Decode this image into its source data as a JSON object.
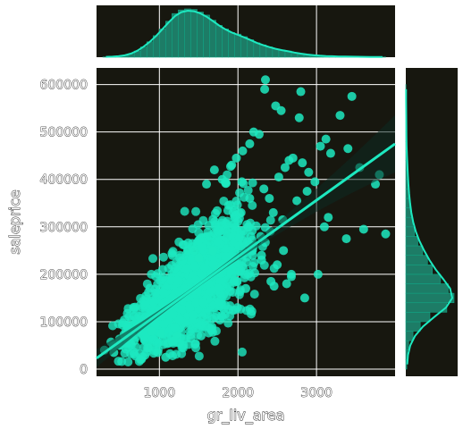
{
  "colors": {
    "background": "#17170f",
    "grid": "#ffffff",
    "accent": "#1de9c0",
    "bar": "#1d7c66",
    "bar_edge": "#12a484"
  },
  "chart_data": {
    "type": "scatter",
    "title": "",
    "xlabel": "gr_liv_area",
    "ylabel": "saleprice",
    "xlim": [
      200,
      4000
    ],
    "ylim": [
      -15000,
      635000
    ],
    "xticks": [
      1000,
      2000,
      3000
    ],
    "yticks": [
      0,
      100000,
      200000,
      300000,
      400000,
      500000,
      600000
    ],
    "xtick_labels": [
      "1000",
      "2000",
      "3000"
    ],
    "ytick_labels": [
      "0",
      "100000",
      "200000",
      "300000",
      "400000",
      "500000",
      "600000"
    ],
    "grid": true,
    "regression": {
      "x": [
        200,
        4000
      ],
      "y": [
        23000,
        475000
      ],
      "ci": true
    },
    "outliers": {
      "x": [
        2350,
        2340,
        2800,
        2480,
        2550,
        3450,
        3300,
        2780,
        3120,
        3400,
        2200,
        2270,
        2650,
        3050,
        2820,
        2900,
        2060,
        3550,
        3800,
        3180,
        3150,
        3750,
        3600,
        3880,
        3100,
        3380,
        3020,
        2150,
        2520,
        2330,
        2600,
        2700,
        2980,
        2400,
        2880,
        1850,
        1920,
        1600,
        1700,
        1800,
        2050,
        1980,
        2450,
        2750,
        2300,
        2580,
        1440,
        1500,
        1750,
        2100,
        2680,
        2620,
        2850,
        2460,
        2420,
        2500,
        2300,
        2680,
        2200,
        2130,
        2570,
        2150,
        2040,
        1680,
        1360,
        1230,
        1020,
        1120,
        1080,
        300,
        420,
        560,
        680,
        720,
        860,
        900,
        760,
        980,
        1400,
        1530,
        1260,
        1180
      ],
      "y": [
        610000,
        590000,
        585000,
        555000,
        545000,
        575000,
        535000,
        530000,
        485000,
        465000,
        500000,
        495000,
        440000,
        470000,
        435000,
        415000,
        460000,
        425000,
        410000,
        455000,
        320000,
        390000,
        295000,
        285000,
        300000,
        275000,
        200000,
        475000,
        405000,
        380000,
        425000,
        445000,
        395000,
        360000,
        375000,
        392000,
        430000,
        390000,
        420000,
        400000,
        395000,
        445000,
        330000,
        355000,
        240000,
        250000,
        250000,
        235000,
        210000,
        170000,
        195000,
        180000,
        150000,
        175000,
        185000,
        220000,
        230000,
        200000,
        260000,
        300000,
        315000,
        360000,
        330000,
        250000,
        250000,
        70000,
        75000,
        55000,
        25000,
        40000,
        35000,
        70000,
        60000,
        90000,
        45000,
        80000,
        20000,
        35000,
        65000,
        70000,
        55000,
        60000
      ]
    },
    "x_marginal": {
      "bins": [
        320,
        400,
        480,
        560,
        640,
        720,
        800,
        880,
        960,
        1040,
        1120,
        1200,
        1280,
        1360,
        1440,
        1520,
        1600,
        1680,
        1760,
        1840,
        1920,
        2000,
        2080,
        2160,
        2240,
        2320,
        2400,
        2480,
        2560,
        2640,
        2720,
        2800,
        2880,
        2960,
        3040,
        3120,
        3200,
        3280,
        3360,
        3440,
        3520,
        3600,
        3680,
        3760,
        3840
      ],
      "counts": [
        0.5,
        1,
        1.5,
        3,
        6,
        12,
        20,
        30,
        42,
        55,
        70,
        85,
        92,
        94,
        93,
        88,
        82,
        72,
        62,
        55,
        48,
        45,
        40,
        34,
        28,
        24,
        20,
        16,
        14,
        12,
        9,
        7,
        5,
        4,
        3,
        2,
        2,
        1.5,
        1,
        1,
        1,
        0.5,
        0.5,
        0.5,
        0.5
      ]
    },
    "y_marginal": {
      "bins": [
        10000,
        30000,
        50000,
        70000,
        90000,
        110000,
        130000,
        150000,
        170000,
        190000,
        210000,
        230000,
        250000,
        270000,
        290000,
        310000,
        330000,
        350000,
        370000,
        390000,
        410000,
        430000,
        450000,
        470000,
        490000,
        510000,
        530000,
        550000,
        570000,
        590000
      ],
      "counts": [
        2,
        3,
        6,
        15,
        30,
        50,
        85,
        100,
        88,
        72,
        55,
        45,
        35,
        25,
        18,
        14,
        10,
        8,
        6,
        5,
        4,
        3,
        2,
        1.5,
        1.2,
        1,
        0.8,
        0.6,
        0.5,
        0.4
      ]
    }
  }
}
